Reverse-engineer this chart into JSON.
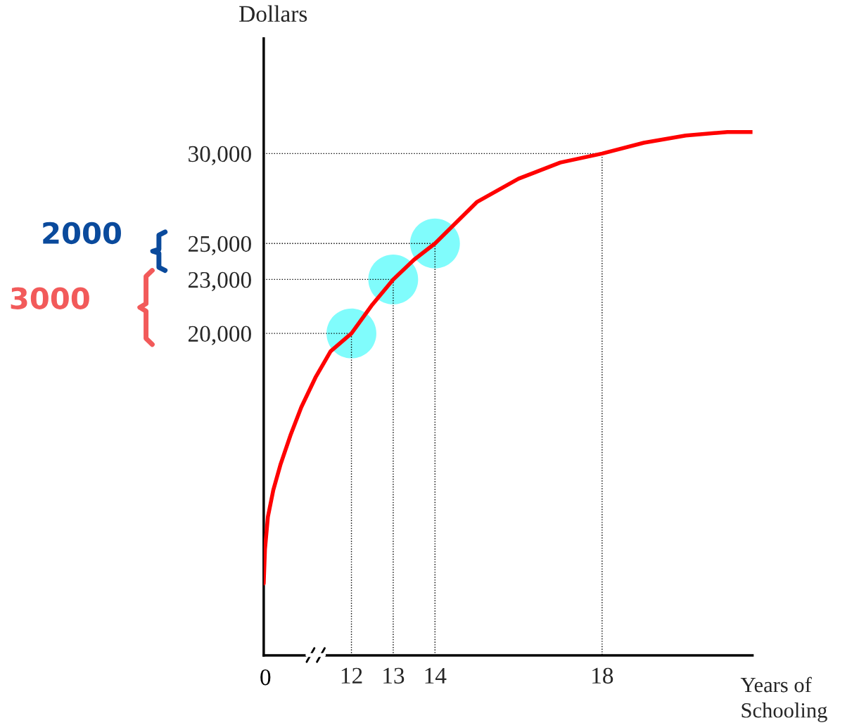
{
  "chart_data": {
    "type": "line",
    "ylabel": "Dollars",
    "xlabel": "Years of\nSchooling",
    "xlim": [
      9.9,
      21.6
    ],
    "ylim": [
      2100,
      36400
    ],
    "xticks": [
      12,
      13,
      14,
      18
    ],
    "yticks": [
      {
        "value": 20000,
        "label": "20,000"
      },
      {
        "value": 23000,
        "label": "23,000"
      },
      {
        "value": 25000,
        "label": "25,000"
      },
      {
        "value": 30000,
        "label": "30,000"
      }
    ],
    "grid": false,
    "legend": false,
    "annotations": [
      "2000",
      "3000",
      "0"
    ],
    "series": [
      {
        "type": "scatter",
        "marker": "circle",
        "color": "#80fcfc",
        "x": [
          12,
          13,
          14
        ],
        "values": [
          20000,
          23000,
          25000
        ]
      },
      {
        "line_style": "dotted",
        "color": "#000000",
        "x": [
          9.9,
          12,
          12
        ],
        "values": [
          20000,
          20000,
          2100
        ]
      },
      {
        "line_style": "dotted",
        "color": "#000000",
        "x": [
          9.9,
          13,
          13
        ],
        "values": [
          23000,
          23000,
          2100
        ]
      },
      {
        "line_style": "dotted",
        "color": "#000000",
        "x": [
          9.9,
          14,
          14
        ],
        "values": [
          25000,
          25000,
          2100
        ]
      },
      {
        "line_style": "dotted",
        "color": "#000000",
        "x": [
          9.9,
          18,
          18
        ],
        "values": [
          30000,
          30000,
          2100
        ]
      },
      {
        "line_style": "solid",
        "color": "#ff0000",
        "x": [
          9.9,
          9.93,
          10.0,
          10.13,
          10.3,
          10.55,
          10.8,
          11.15,
          11.5,
          12,
          12.5,
          13,
          13.5,
          14,
          15,
          16,
          17,
          18,
          19,
          20,
          21,
          21.6
        ],
        "values": [
          6100,
          8000,
          9800,
          11300,
          12700,
          14400,
          15900,
          17600,
          19000,
          20000,
          21600,
          23000,
          24100,
          25000,
          27300,
          28600,
          29500,
          30000,
          30600,
          31000,
          31200,
          31200
        ]
      }
    ]
  }
}
